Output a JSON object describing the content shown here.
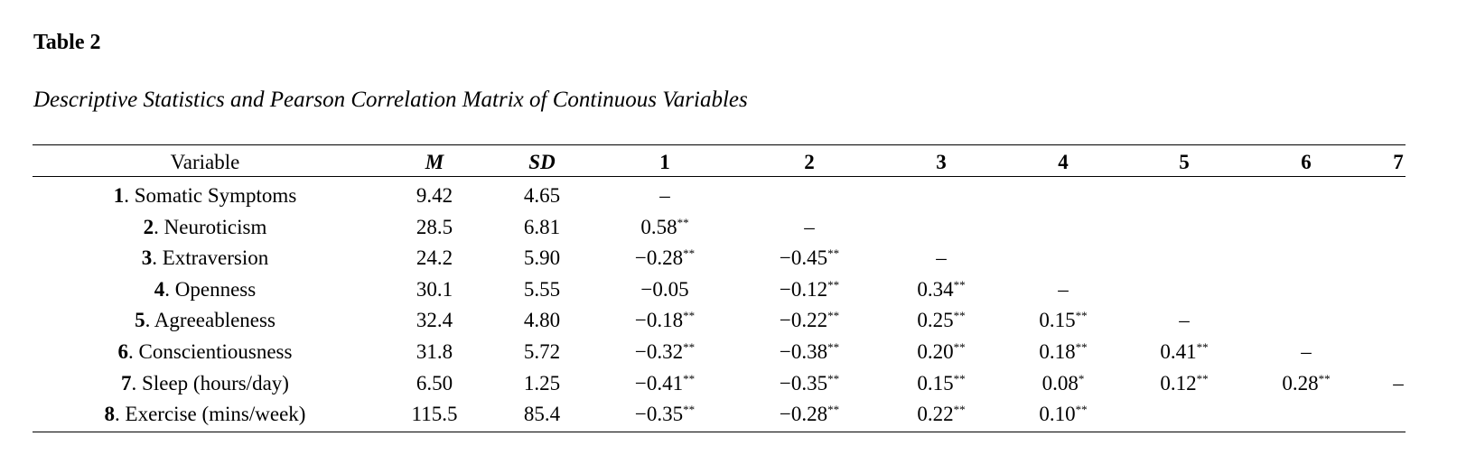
{
  "title": "Table 2",
  "subtitle": "Descriptive Statistics and Pearson Correlation Matrix of Continuous Variables",
  "table": {
    "header": [
      "Variable",
      "M",
      "SD",
      "1",
      "2",
      "3",
      "4",
      "5",
      "6",
      "7"
    ],
    "rows": [
      {
        "num": "1",
        "label": ". Somatic Symptoms",
        "cells": [
          "9.42",
          "4.65",
          "–"
        ]
      },
      {
        "num": "2",
        "label": ". Neuroticism",
        "cells": [
          "28.5",
          "6.81",
          {
            "text": "0.58",
            "sig": "**"
          },
          "–"
        ]
      },
      {
        "num": "3",
        "label": ". Extraversion",
        "cells": [
          "24.2",
          "5.90",
          {
            "text": "−0.28",
            "sig": "**"
          },
          {
            "text": "−0.45",
            "sig": "**"
          },
          "–"
        ]
      },
      {
        "num": "4",
        "label": ". Openness",
        "cells": [
          "30.1",
          "5.55",
          "−0.05",
          {
            "text": "−0.12",
            "sig": "**"
          },
          {
            "text": "0.34",
            "sig": "**"
          },
          "–"
        ]
      },
      {
        "num": "5",
        "label": ". Agreeableness",
        "cells": [
          "32.4",
          "4.80",
          {
            "text": "−0.18",
            "sig": "**"
          },
          {
            "text": "−0.22",
            "sig": "**"
          },
          {
            "text": "0.25",
            "sig": "**"
          },
          {
            "text": "0.15",
            "sig": "**"
          },
          "–"
        ]
      },
      {
        "num": "6",
        "label": ". Conscientiousness",
        "cells": [
          "31.8",
          "5.72",
          {
            "text": "−0.32",
            "sig": "**"
          },
          {
            "text": "−0.38",
            "sig": "**"
          },
          {
            "text": "0.20",
            "sig": "**"
          },
          {
            "text": "0.18",
            "sig": "**"
          },
          {
            "text": "0.41",
            "sig": "**"
          },
          "–"
        ]
      },
      {
        "num": "7",
        "label": ". Sleep (hours/day)",
        "cells": [
          "6.50",
          "1.25",
          {
            "text": "−0.41",
            "sig": "**"
          },
          {
            "text": "−0.35",
            "sig": "**"
          },
          {
            "text": "0.15",
            "sig": "**"
          },
          {
            "text": "0.08",
            "sig": "*"
          },
          {
            "text": "0.12",
            "sig": "**"
          },
          {
            "text": "0.28",
            "sig": "**"
          },
          "–"
        ]
      },
      {
        "num": "8",
        "label": ". Exercise (mins/week)",
        "cells": [
          "115.5",
          "85.4",
          {
            "text": "−0.35",
            "sig": "**"
          },
          {
            "text": "−0.28",
            "sig": "**"
          },
          {
            "text": "0.22",
            "sig": "**"
          },
          {
            "text": "0.10",
            "sig": "**"
          }
        ]
      }
    ]
  }
}
